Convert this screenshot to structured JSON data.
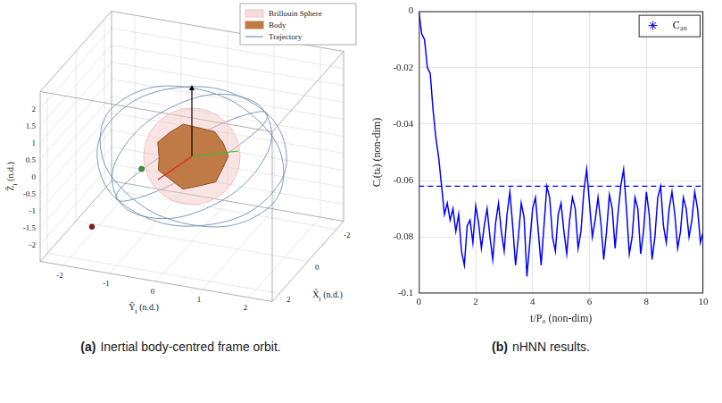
{
  "chart_data": [
    {
      "type": "orbit_3d",
      "caption": {
        "label": "(a)",
        "text": "Inertial body-centred frame orbit."
      },
      "x_label": {
        "symbol": "X̂",
        "subscript": "I",
        "unit": "(n.d.)"
      },
      "y_label": {
        "symbol": "Ŷ",
        "subscript": "I",
        "unit": "(n.d.)"
      },
      "z_label": {
        "symbol": "Ẑ",
        "subscript": "I",
        "unit": "(n.d.)"
      },
      "xlim": [
        -2.5,
        2.5
      ],
      "xticks": [
        -2,
        0,
        2
      ],
      "ylim": [
        -2.5,
        2.5
      ],
      "yticks": [
        -2,
        -1,
        0,
        1,
        2
      ],
      "zlim": [
        -2.5,
        2.5
      ],
      "zticks": [
        -2,
        -1.5,
        -1,
        -0.5,
        0,
        0.5,
        1,
        1.5,
        2
      ],
      "grid": true,
      "legend": "top-right",
      "sphere": {
        "name": "Brillouin Sphere",
        "color": "#f2c4c4",
        "radius": 1.2
      },
      "body": {
        "name": "Body",
        "color": "#c07a45"
      },
      "series": [
        {
          "name": "Trajectory",
          "color": "#6f8fb0",
          "rings": [
            [
              [
                2,
                0,
                0
              ],
              [
                1.41,
                1.08,
                0.91
              ],
              [
                0,
                1.53,
                1.29
              ],
              [
                -1.41,
                1.08,
                0.91
              ],
              [
                -2,
                0,
                0
              ],
              [
                -1.41,
                -1.08,
                -0.91
              ],
              [
                0,
                -1.53,
                -1.29
              ],
              [
                1.41,
                -1.08,
                -0.91
              ]
            ],
            [
              [
                1.41,
                1.41,
                0
              ],
              [
                0.23,
                1.77,
                0.91
              ],
              [
                -1.08,
                1.08,
                1.29
              ],
              [
                -1.77,
                -0.23,
                0.91
              ],
              [
                -1.41,
                -1.41,
                0
              ],
              [
                -0.23,
                -1.77,
                -0.91
              ],
              [
                1.08,
                -1.08,
                -1.29
              ],
              [
                1.77,
                0.23,
                -0.91
              ]
            ],
            [
              [
                0,
                2,
                0
              ],
              [
                -1.08,
                1.41,
                0.91
              ],
              [
                -1.53,
                0,
                1.29
              ],
              [
                -1.08,
                -1.41,
                0.91
              ],
              [
                0,
                -2,
                0
              ],
              [
                1.08,
                -1.41,
                -0.91
              ],
              [
                1.53,
                0,
                -1.29
              ],
              [
                1.08,
                1.41,
                -0.91
              ]
            ],
            [
              [
                -1.41,
                1.41,
                0
              ],
              [
                -1.77,
                0.23,
                0.91
              ],
              [
                -1.08,
                -1.08,
                1.29
              ],
              [
                0.23,
                -1.77,
                0.91
              ],
              [
                1.41,
                -1.41,
                0
              ],
              [
                1.77,
                -0.23,
                -0.91
              ],
              [
                1.08,
                1.08,
                -1.29
              ],
              [
                -0.23,
                1.77,
                -0.91
              ]
            ]
          ]
        }
      ],
      "points": [
        {
          "xyz": [
            0.6,
            -0.9,
            -0.3
          ],
          "color": "#2ca02c"
        },
        {
          "xyz": [
            1.8,
            -1.6,
            -1.6
          ],
          "color": "#8b1a1a"
        }
      ]
    },
    {
      "type": "line",
      "caption": {
        "label": "(b)",
        "text": "nHNN results."
      },
      "x_label": "t/P₀ (non-dim)",
      "y_label": "Cᵢ(tₖ) (non-dim)",
      "x": [
        0,
        0.1,
        0.2,
        0.3,
        0.4,
        0.5,
        0.6,
        0.7,
        0.8,
        0.9,
        1,
        1.1,
        1.2,
        1.3,
        1.4,
        1.5,
        1.6,
        1.7,
        1.8,
        1.9,
        2,
        2.1,
        2.2,
        2.3,
        2.4,
        2.5,
        2.6,
        2.7,
        2.8,
        2.9,
        3,
        3.1,
        3.2,
        3.3,
        3.4,
        3.5,
        3.6,
        3.7,
        3.8,
        3.9,
        4,
        4.1,
        4.2,
        4.3,
        4.4,
        4.5,
        4.6,
        4.7,
        4.8,
        4.9,
        5,
        5.1,
        5.2,
        5.3,
        5.4,
        5.5,
        5.6,
        5.7,
        5.8,
        5.9,
        6,
        6.1,
        6.2,
        6.3,
        6.4,
        6.5,
        6.6,
        6.7,
        6.8,
        6.9,
        7,
        7.1,
        7.2,
        7.3,
        7.4,
        7.5,
        7.6,
        7.7,
        7.8,
        7.9,
        8,
        8.1,
        8.2,
        8.3,
        8.4,
        8.5,
        8.6,
        8.7,
        8.8,
        8.9,
        9,
        9.1,
        9.2,
        9.3,
        9.4,
        9.5,
        9.6,
        9.7,
        9.8,
        9.9,
        10
      ],
      "series": [
        {
          "name": "C₂₀",
          "color": "#0000ff",
          "marker": "star",
          "line_style": "solid",
          "values": [
            0,
            -0.008,
            -0.01,
            -0.02,
            -0.022,
            -0.035,
            -0.045,
            -0.052,
            -0.062,
            -0.072,
            -0.068,
            -0.074,
            -0.07,
            -0.078,
            -0.072,
            -0.085,
            -0.09,
            -0.076,
            -0.074,
            -0.082,
            -0.069,
            -0.075,
            -0.084,
            -0.076,
            -0.07,
            -0.08,
            -0.088,
            -0.075,
            -0.068,
            -0.078,
            -0.085,
            -0.072,
            -0.064,
            -0.076,
            -0.09,
            -0.08,
            -0.068,
            -0.073,
            -0.094,
            -0.082,
            -0.07,
            -0.066,
            -0.078,
            -0.09,
            -0.076,
            -0.062,
            -0.066,
            -0.08,
            -0.085,
            -0.072,
            -0.068,
            -0.078,
            -0.086,
            -0.074,
            -0.066,
            -0.07,
            -0.084,
            -0.078,
            -0.064,
            -0.056,
            -0.068,
            -0.08,
            -0.074,
            -0.066,
            -0.075,
            -0.088,
            -0.078,
            -0.065,
            -0.07,
            -0.084,
            -0.072,
            -0.062,
            -0.056,
            -0.07,
            -0.086,
            -0.08,
            -0.066,
            -0.07,
            -0.086,
            -0.078,
            -0.064,
            -0.072,
            -0.088,
            -0.08,
            -0.066,
            -0.062,
            -0.076,
            -0.082,
            -0.07,
            -0.064,
            -0.072,
            -0.084,
            -0.078,
            -0.066,
            -0.07,
            -0.08,
            -0.074,
            -0.064,
            -0.07,
            -0.082,
            -0.078
          ]
        }
      ],
      "hlines": [
        {
          "value": -0.062,
          "color": "#0000ff",
          "line_style": "dashed"
        }
      ],
      "xlim": [
        0,
        10
      ],
      "xticks": [
        0,
        2,
        4,
        6,
        8,
        10
      ],
      "ylim": [
        -0.1,
        0
      ],
      "yticks": [
        -0.1,
        -0.08,
        -0.06,
        -0.04,
        -0.02,
        0
      ],
      "grid": true,
      "legend": "top-right"
    }
  ]
}
